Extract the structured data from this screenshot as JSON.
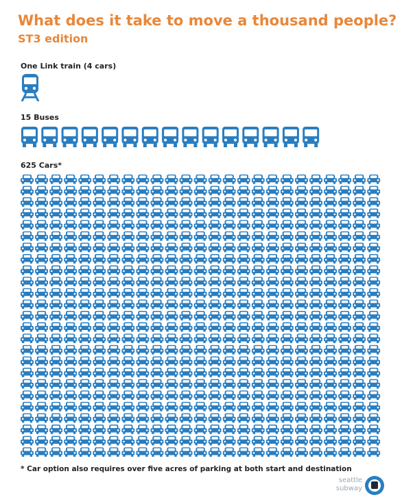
{
  "header": {
    "title": "What does it take to move a thousand people?",
    "subtitle": "ST3 edition"
  },
  "sections": [
    {
      "label": "One Link train (4 cars)",
      "count": 1,
      "icon": "train"
    },
    {
      "label": "15 Buses",
      "count": 15,
      "icon": "bus"
    },
    {
      "label": "625 Cars*",
      "count": 625,
      "icon": "car"
    }
  ],
  "footnote": "* Car option also requires over five acres of parking at both start and destination",
  "logo": {
    "line1": "seattle",
    "line2": "subway"
  }
}
